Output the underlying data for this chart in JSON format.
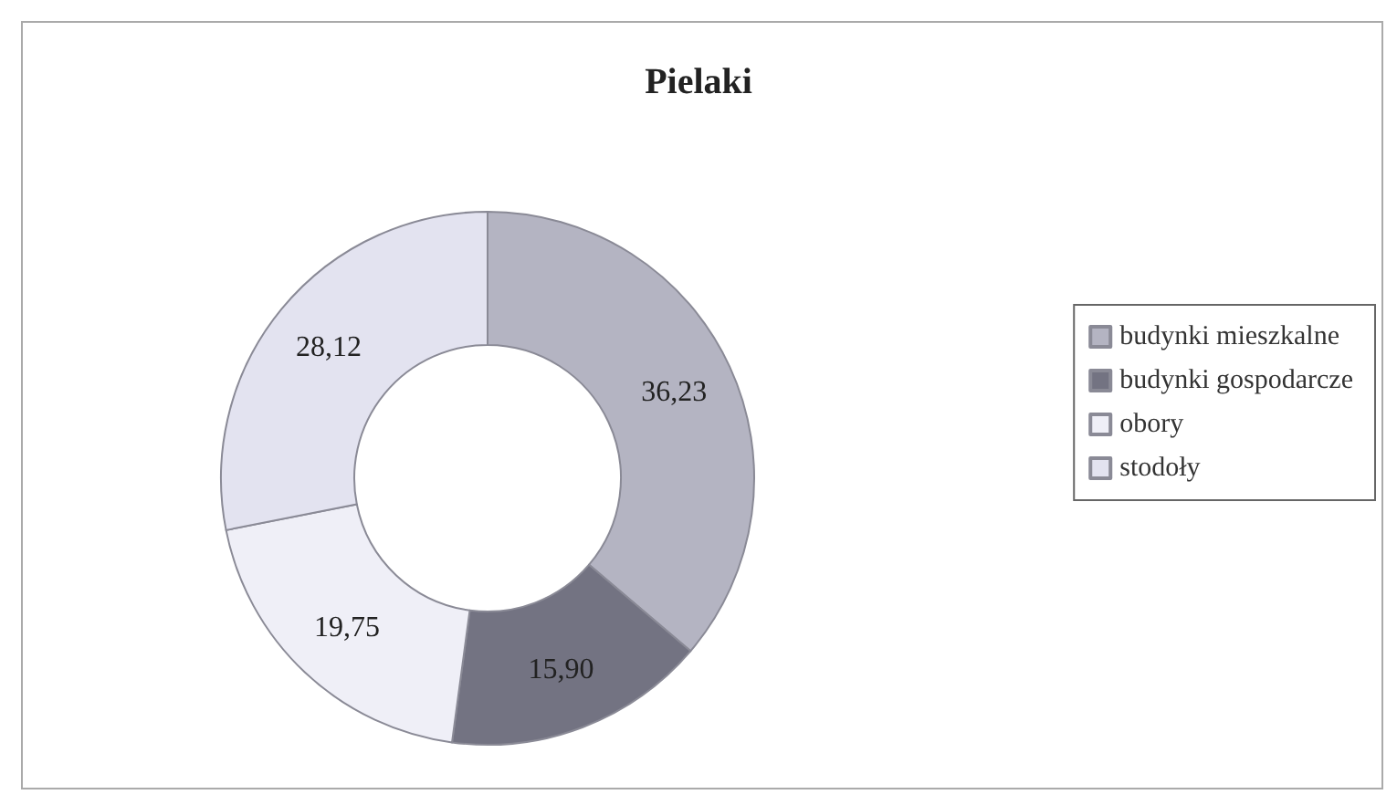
{
  "chart_data": {
    "type": "donut",
    "title": "Pielaki",
    "categories": [
      "budynki mieszkalne",
      "budynki gospodarcze",
      "obory",
      "stodoły"
    ],
    "values": [
      36.23,
      15.9,
      19.75,
      28.12
    ],
    "value_labels": [
      "36,23",
      "15,90",
      "19,75",
      "28,12"
    ],
    "colors": [
      "#b4b4c2",
      "#737382",
      "#efeff7",
      "#e3e3f0"
    ],
    "legend": "right"
  }
}
